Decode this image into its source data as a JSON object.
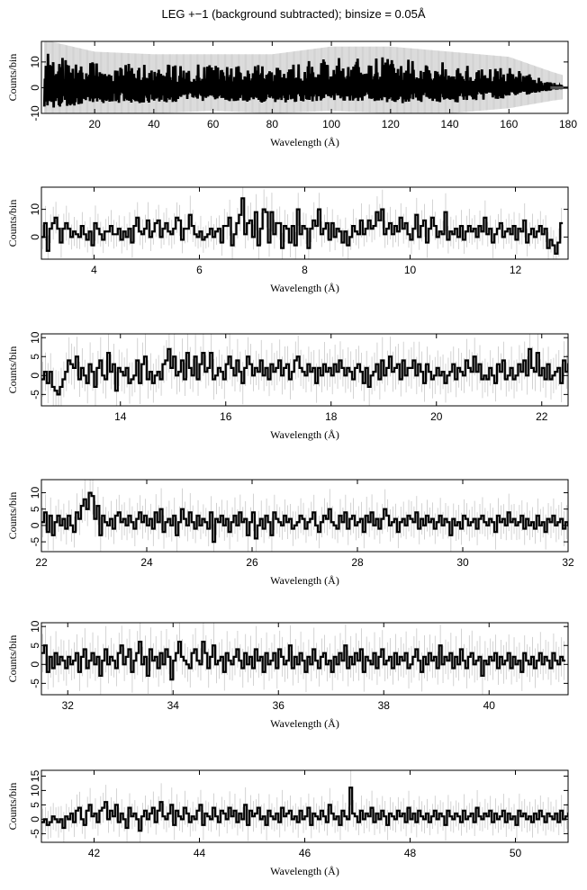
{
  "figure": {
    "title": "LEG +−1 (background subtracted); binsize = 0.05Å"
  },
  "chart_data": [
    {
      "type": "line",
      "panel": 1,
      "xlabel": "Wavelength (Å)",
      "ylabel": "Counts/bin",
      "xlim": [
        2,
        180
      ],
      "ylim": [
        -10,
        18
      ],
      "xticks": [
        20,
        40,
        60,
        80,
        100,
        120,
        140,
        160,
        180
      ],
      "yticks": [
        -10,
        0,
        10
      ],
      "envelope": [
        {
          "x": 5,
          "lo": -8,
          "hi": 14
        },
        {
          "x": 20,
          "lo": -6,
          "hi": 10
        },
        {
          "x": 40,
          "lo": -6,
          "hi": 9
        },
        {
          "x": 60,
          "lo": -5,
          "hi": 9
        },
        {
          "x": 80,
          "lo": -6,
          "hi": 9
        },
        {
          "x": 100,
          "lo": -5,
          "hi": 12
        },
        {
          "x": 120,
          "lo": -6,
          "hi": 12
        },
        {
          "x": 140,
          "lo": -6,
          "hi": 10
        },
        {
          "x": 160,
          "lo": -4,
          "hi": 8
        },
        {
          "x": 175,
          "lo": -1,
          "hi": 2
        },
        {
          "x": 180,
          "lo": -0.3,
          "hi": 0.3
        }
      ]
    },
    {
      "type": "line",
      "panel": 2,
      "xlabel": "Wavelength (Å)",
      "ylabel": "Counts/bin",
      "xlim": [
        3,
        13
      ],
      "ylim": [
        -8,
        18
      ],
      "xticks": [
        4,
        6,
        8,
        10,
        12
      ],
      "yticks": [
        0,
        10
      ],
      "x_start": 3.0,
      "binsize": 0.05,
      "values": [
        0,
        5,
        -5,
        3,
        5,
        7,
        3,
        -2,
        3,
        5,
        3,
        0,
        2,
        1,
        0,
        4,
        1,
        -1,
        2,
        -3,
        5,
        3,
        1,
        -1,
        2,
        2,
        4,
        1,
        1,
        3,
        -1,
        2,
        0,
        3,
        -2,
        4,
        7,
        2,
        1,
        3,
        6,
        0,
        2,
        5,
        6,
        0,
        3,
        5,
        2,
        1,
        3,
        7,
        6,
        -1,
        3,
        3,
        8,
        4,
        1,
        0,
        2,
        -1,
        0,
        1,
        3,
        0,
        2,
        3,
        -2,
        4,
        4,
        7,
        -3,
        1,
        5,
        8,
        14,
        1,
        5,
        6,
        0,
        9,
        -3,
        3,
        10,
        9,
        -2,
        9,
        1,
        5,
        5,
        -4,
        4,
        3,
        -2,
        4,
        -3,
        10,
        1,
        4,
        3,
        -4,
        3,
        6,
        4,
        10,
        1,
        3,
        5,
        -1,
        5,
        0,
        3,
        2,
        -2,
        2,
        -3,
        0,
        4,
        2,
        1,
        6,
        1,
        3,
        6,
        3,
        4,
        9,
        6,
        10,
        1,
        3,
        5,
        1,
        4,
        2,
        7,
        3,
        5,
        1,
        -1,
        3,
        8,
        0,
        4,
        6,
        -2,
        3,
        7,
        4,
        0,
        2,
        1,
        9,
        -1,
        2,
        1,
        3,
        0,
        4,
        -1,
        2,
        4,
        2,
        3,
        0,
        4,
        2,
        7,
        1,
        3,
        -2,
        1,
        3,
        5,
        0,
        2,
        3,
        1,
        4,
        -1,
        3,
        2,
        6,
        -2,
        1,
        3,
        0,
        2,
        4,
        1,
        3,
        -4,
        -1,
        -3,
        -6,
        -2,
        5
      ]
    },
    {
      "type": "line",
      "panel": 3,
      "xlabel": "Wavelength (Å)",
      "ylabel": "Counts/bin",
      "xlim": [
        12.5,
        22.5
      ],
      "ylim": [
        -8,
        11
      ],
      "xticks": [
        14,
        16,
        18,
        20,
        22
      ],
      "yticks": [
        -5,
        0,
        5,
        10
      ],
      "x_start": 12.5,
      "binsize": 0.05,
      "values": [
        -1,
        1,
        -2,
        1,
        -3,
        -4,
        -5,
        -3,
        -1,
        1,
        4,
        3,
        2,
        5,
        -1,
        2,
        0,
        -2,
        3,
        1,
        -3,
        2,
        4,
        0,
        -1,
        6,
        1,
        3,
        -4,
        2,
        1,
        0,
        2,
        -2,
        -1,
        0,
        4,
        -2,
        3,
        5,
        -1,
        1,
        -2,
        0,
        1,
        -1,
        3,
        4,
        7,
        2,
        5,
        0,
        1,
        4,
        -1,
        6,
        2,
        0,
        5,
        -1,
        3,
        6,
        1,
        2,
        6,
        -1,
        0,
        2,
        1,
        -1,
        3,
        5,
        2,
        0,
        4,
        1,
        -2,
        2,
        5,
        3,
        0,
        2,
        1,
        4,
        0,
        2,
        -1,
        3,
        1,
        2,
        4,
        0,
        2,
        3,
        -1,
        1,
        4,
        5,
        2,
        1,
        0,
        3,
        1,
        2,
        -2,
        2,
        0,
        3,
        1,
        2,
        0,
        3,
        1,
        4,
        2,
        0,
        2,
        1,
        -1,
        2,
        3,
        1,
        -2,
        2,
        -3,
        0,
        1,
        3,
        -1,
        4,
        0,
        2,
        5,
        1,
        2,
        3,
        -1,
        4,
        0,
        2,
        2,
        4,
        0,
        3,
        1,
        -2,
        3,
        1,
        -1,
        0,
        2,
        0,
        1,
        -2,
        0,
        1,
        3,
        -1,
        2,
        1,
        0,
        4,
        2,
        1,
        5,
        1,
        3,
        -1,
        0,
        -1,
        2,
        0,
        -2,
        3,
        1,
        4,
        -1,
        0,
        2,
        -1,
        0,
        3,
        1,
        4,
        0,
        7,
        2,
        1,
        6,
        0,
        2,
        -1,
        3,
        -1,
        0,
        1,
        2,
        -2,
        4,
        1,
        3,
        -2,
        2,
        -1
      ]
    },
    {
      "type": "line",
      "panel": 4,
      "xlabel": "Wavelength (Å)",
      "ylabel": "Counts/bin",
      "xlim": [
        22,
        32
      ],
      "ylim": [
        -8,
        14
      ],
      "xticks": [
        22,
        24,
        26,
        28,
        30,
        32
      ],
      "yticks": [
        -5,
        0,
        5,
        10
      ],
      "x_start": 22.0,
      "binsize": 0.05,
      "values": [
        1,
        4,
        -2,
        3,
        -3,
        1,
        3,
        0,
        2,
        -1,
        3,
        0,
        -2,
        4,
        2,
        6,
        8,
        5,
        10,
        9,
        2,
        6,
        -3,
        3,
        1,
        0,
        2,
        -1,
        3,
        4,
        1,
        2,
        0,
        3,
        1,
        -1,
        2,
        4,
        1,
        3,
        0,
        2,
        -1,
        4,
        1,
        5,
        -2,
        1,
        2,
        0,
        3,
        -3,
        1,
        5,
        2,
        0,
        4,
        1,
        -1,
        3,
        0,
        2,
        1,
        -1,
        4,
        -5,
        2,
        1,
        3,
        0,
        2,
        -2,
        1,
        3,
        0,
        4,
        1,
        2,
        -3,
        1,
        4,
        -4,
        0,
        2,
        -1,
        3,
        1,
        -3,
        4,
        2,
        1,
        0,
        3,
        1,
        2,
        -1,
        0,
        1,
        3,
        2,
        -1,
        1,
        2,
        4,
        0,
        -2,
        1,
        3,
        2,
        5,
        1,
        0,
        -1,
        3,
        1,
        4,
        -1,
        2,
        3,
        0,
        1,
        2,
        -2,
        3,
        1,
        4,
        0,
        2,
        -1,
        2,
        5,
        3,
        0,
        1,
        2,
        -2,
        1,
        2,
        0,
        3,
        2,
        1,
        4,
        -1,
        2,
        0,
        3,
        1,
        2,
        -1,
        1,
        3,
        0,
        2,
        1,
        -3,
        2,
        0,
        1,
        -1,
        3,
        2,
        0,
        1,
        2,
        -1,
        2,
        3,
        1,
        0,
        2,
        1,
        -2,
        3,
        1,
        2,
        0,
        4,
        1,
        2,
        0,
        1,
        3,
        -1,
        2,
        0,
        1,
        -1,
        3,
        0,
        1,
        -2,
        2,
        1,
        3,
        0,
        1,
        2,
        -1,
        1,
        0,
        2,
        1,
        -1
      ]
    },
    {
      "type": "line",
      "panel": 5,
      "xlabel": "Wavelength (Å)",
      "ylabel": "Counts/bin",
      "xlim": [
        31.5,
        41.5
      ],
      "ylim": [
        -8,
        11
      ],
      "xticks": [
        32,
        34,
        36,
        38,
        40
      ],
      "yticks": [
        -5,
        0,
        5,
        10
      ],
      "x_start": 31.5,
      "binsize": 0.05,
      "values": [
        3,
        5,
        -2,
        2,
        -1,
        3,
        0,
        2,
        1,
        -1,
        2,
        0,
        1,
        3,
        -2,
        2,
        4,
        -1,
        1,
        3,
        0,
        2,
        -3,
        1,
        4,
        0,
        2,
        1,
        -1,
        3,
        5,
        0,
        2,
        4,
        -2,
        1,
        3,
        6,
        0,
        2,
        -3,
        4,
        1,
        2,
        -1,
        3,
        0,
        4,
        2,
        -4,
        1,
        3,
        6,
        2,
        1,
        0,
        -1,
        3,
        4,
        1,
        0,
        6,
        3,
        -1,
        2,
        5,
        0,
        1,
        2,
        -2,
        3,
        1,
        0,
        2,
        4,
        1,
        -1,
        3,
        0,
        2,
        -1,
        4,
        1,
        2,
        -2,
        3,
        0,
        1,
        3,
        -1,
        4,
        2,
        0,
        1,
        5,
        -1,
        2,
        0,
        3,
        1,
        -2,
        2,
        0,
        4,
        1,
        -1,
        2,
        3,
        0,
        1,
        -2,
        2,
        0,
        3,
        1,
        5,
        -1,
        2,
        0,
        3,
        1,
        4,
        -2,
        2,
        1,
        0,
        3,
        -1,
        2,
        4,
        0,
        1,
        2,
        -1,
        3,
        0,
        2,
        1,
        3,
        -1,
        0,
        2,
        4,
        1,
        -2,
        2,
        0,
        3,
        1,
        2,
        -1,
        5,
        0,
        2,
        1,
        3,
        -1,
        2,
        0,
        4,
        1,
        -1,
        2,
        3,
        0,
        1,
        2,
        -3,
        1,
        0,
        2,
        1,
        3,
        -1,
        2,
        0,
        1,
        3,
        -1,
        2,
        0,
        1,
        -2,
        3,
        1,
        0,
        2,
        -1,
        1,
        3,
        0,
        2,
        1,
        -1,
        3,
        1,
        0,
        2,
        1
      ]
    },
    {
      "type": "line",
      "panel": 6,
      "xlabel": "Wavelength (Å)",
      "ylabel": "Counts/bin",
      "xlim": [
        41,
        51
      ],
      "ylim": [
        -8,
        17
      ],
      "xticks": [
        42,
        44,
        46,
        48,
        50
      ],
      "yticks": [
        -5,
        0,
        5,
        10,
        15
      ],
      "x_start": 41.0,
      "binsize": 0.05,
      "values": [
        -1,
        0,
        -2,
        -1,
        1,
        0,
        -1,
        0,
        -3,
        1,
        0,
        2,
        -1,
        3,
        4,
        0,
        -2,
        3,
        5,
        1,
        2,
        -1,
        3,
        4,
        6,
        0,
        3,
        1,
        5,
        -1,
        2,
        0,
        -3,
        4,
        1,
        2,
        0,
        -4,
        1,
        3,
        0,
        2,
        4,
        -1,
        3,
        6,
        1,
        0,
        2,
        5,
        -2,
        3,
        1,
        0,
        4,
        2,
        -1,
        1,
        0,
        3,
        5,
        -2,
        2,
        1,
        0,
        4,
        1,
        -1,
        3,
        2,
        0,
        4,
        1,
        3,
        -1,
        2,
        0,
        5,
        -2,
        3,
        1,
        2,
        4,
        0,
        1,
        -2,
        3,
        1,
        0,
        2,
        -1,
        4,
        1,
        2,
        3,
        0,
        1,
        -1,
        3,
        0,
        1,
        4,
        -2,
        2,
        1,
        0,
        3,
        1,
        -1,
        5,
        2,
        0,
        1,
        -2,
        3,
        1,
        0,
        11,
        2,
        1,
        -1,
        3,
        0,
        2,
        1,
        4,
        -1,
        2,
        0,
        3,
        1,
        -2,
        2,
        1,
        0,
        3,
        1,
        2,
        -1,
        4,
        0,
        2,
        -1,
        3,
        1,
        0,
        2,
        -1,
        1,
        3,
        0,
        2,
        1,
        -2,
        3,
        1,
        0,
        2,
        1,
        -1,
        3,
        0,
        1,
        2,
        -1,
        4,
        1,
        0,
        2,
        1,
        3,
        -1,
        2,
        0,
        1,
        3,
        -1,
        2,
        0,
        1,
        -2,
        3,
        1,
        2,
        0,
        1,
        -1,
        2,
        0,
        3,
        1,
        -1,
        2,
        1,
        0,
        2,
        -1,
        3,
        0,
        1,
        2,
        0,
        -1
      ]
    }
  ]
}
